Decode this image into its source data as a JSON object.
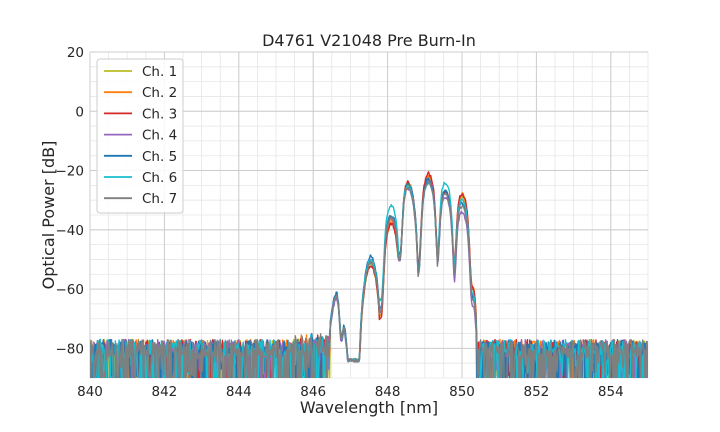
{
  "chart_data": {
    "type": "line",
    "title": "D4761 V21048 Pre Burn-In",
    "xlabel": "Wavelength [nm]",
    "ylabel": "Optical Power [dB]",
    "xlim": [
      840,
      855
    ],
    "ylim": [
      -90,
      20
    ],
    "xticks": [
      840,
      842,
      844,
      846,
      848,
      850,
      852,
      854
    ],
    "yticks": [
      20,
      0,
      -20,
      -40,
      -60,
      -80
    ],
    "grid": true,
    "legend_position": "top-left",
    "noise_floor_db": -80,
    "series": [
      {
        "name": "Ch. 1",
        "color": "#bcbd22",
        "peaks": [
          [
            846.65,
            -62
          ],
          [
            847.55,
            -52
          ],
          [
            848.1,
            -38
          ],
          [
            848.55,
            -25
          ],
          [
            849.1,
            -22
          ],
          [
            849.55,
            -27
          ],
          [
            850.0,
            -29
          ]
        ]
      },
      {
        "name": "Ch. 2",
        "color": "#ff7f0e",
        "peaks": [
          [
            846.65,
            -62
          ],
          [
            847.55,
            -51
          ],
          [
            848.1,
            -37
          ],
          [
            848.55,
            -24
          ],
          [
            849.1,
            -22
          ],
          [
            849.55,
            -27
          ],
          [
            850.0,
            -28
          ]
        ]
      },
      {
        "name": "Ch. 3",
        "color": "#d62728",
        "peaks": [
          [
            846.65,
            -62
          ],
          [
            847.55,
            -52
          ],
          [
            848.1,
            -38
          ],
          [
            848.55,
            -24
          ],
          [
            849.1,
            -21
          ],
          [
            849.55,
            -27
          ],
          [
            850.0,
            -28
          ]
        ]
      },
      {
        "name": "Ch. 4",
        "color": "#9467bd",
        "peaks": [
          [
            846.65,
            -63
          ],
          [
            847.55,
            -50
          ],
          [
            848.1,
            -36
          ],
          [
            848.55,
            -26
          ],
          [
            849.1,
            -23
          ],
          [
            849.55,
            -29
          ],
          [
            850.0,
            -34
          ]
        ]
      },
      {
        "name": "Ch. 5",
        "color": "#1f77b4",
        "peaks": [
          [
            846.65,
            -61
          ],
          [
            847.55,
            -49
          ],
          [
            848.1,
            -35
          ],
          [
            848.55,
            -24
          ],
          [
            849.1,
            -23
          ],
          [
            849.55,
            -27
          ],
          [
            850.0,
            -31
          ]
        ]
      },
      {
        "name": "Ch. 6",
        "color": "#17becf",
        "peaks": [
          [
            846.65,
            -62
          ],
          [
            847.55,
            -50
          ],
          [
            848.1,
            -32
          ],
          [
            848.55,
            -25
          ],
          [
            849.1,
            -24
          ],
          [
            849.55,
            -24
          ],
          [
            850.0,
            -30
          ]
        ]
      },
      {
        "name": "Ch. 7",
        "color": "#7f7f7f",
        "peaks": [
          [
            846.65,
            -62
          ],
          [
            847.55,
            -51
          ],
          [
            848.1,
            -36
          ],
          [
            848.55,
            -26
          ],
          [
            849.1,
            -24
          ],
          [
            849.55,
            -28
          ],
          [
            850.0,
            -32
          ]
        ]
      }
    ]
  }
}
